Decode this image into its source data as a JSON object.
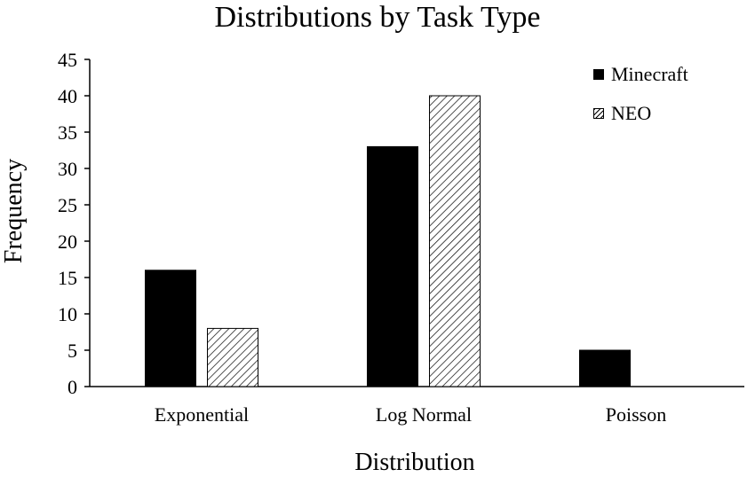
{
  "chart_data": {
    "type": "bar",
    "title": "Distributions by Task Type",
    "xlabel": "Distribution",
    "ylabel": "Frequency",
    "categories": [
      "Exponential",
      "Log Normal",
      "Poisson"
    ],
    "series": [
      {
        "name": "Minecraft",
        "values": [
          16,
          33,
          5
        ],
        "color": "#000000",
        "pattern": "solid"
      },
      {
        "name": "NEO",
        "values": [
          8,
          40,
          0
        ],
        "color": "#ffffff",
        "pattern": "diagonal-hatch"
      }
    ],
    "ylim": [
      0,
      45
    ],
    "yticks": [
      0,
      5,
      10,
      15,
      20,
      25,
      30,
      35,
      40,
      45
    ],
    "grid": false,
    "legend_position": "top-right"
  }
}
